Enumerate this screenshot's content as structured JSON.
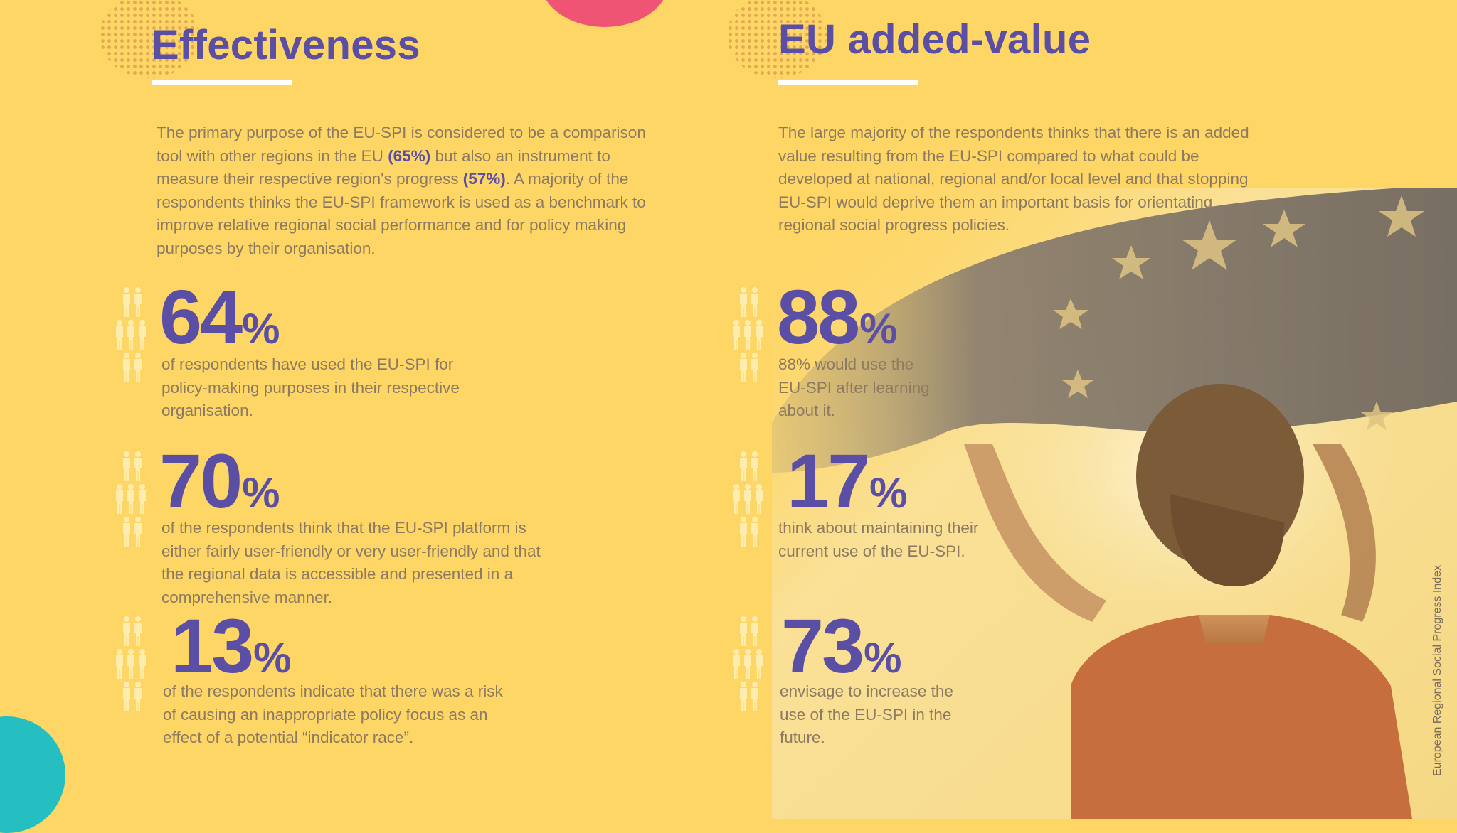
{
  "colors": {
    "background": "#FED665",
    "heading": "#5A4FA5",
    "body_text": "#8C7A62",
    "accent_pink": "#F05474",
    "accent_teal": "#25BFC2"
  },
  "left": {
    "title": "Effectiveness",
    "paragraph": {
      "p1": "The primary purpose of the EU-SPI is considered to be a comparison tool with other regions in the EU ",
      "b1": "(65%)",
      "p2": " but also an instrument to measure their respective region's progress ",
      "b2": "(57%)",
      "p3": ". A majority of the respondents thinks the EU-SPI framework is used as a benchmark to improve relative regional social performance and for policy making purposes by their organisation."
    },
    "stats": [
      {
        "number": "64",
        "unit": "%",
        "description": "of respondents have used the EU-SPI for policy-making purposes in their respective organisation."
      },
      {
        "number": "70",
        "unit": "%",
        "description": "of the respondents think that the EU-SPI platform is either fairly user-friendly or very user-friendly and that the regional data is accessible and presented in a comprehensive manner."
      },
      {
        "number": "13",
        "unit": "%",
        "description": "of the respondents indicate that there was a risk of causing an inappropriate policy focus as an effect of a potential “indicator race”."
      }
    ]
  },
  "right": {
    "title": "EU added-value",
    "paragraph": "The large majority of the respondents thinks that there is an added value resulting from the EU-SPI compared to what could be developed at national, regional and/or local level and that stopping EU-SPI would deprive them an important basis for orientating regional social progress policies.",
    "stats": [
      {
        "number": "88",
        "unit": "%",
        "description": "88% would use the EU-SPI after learning about it."
      },
      {
        "number": "17",
        "unit": "%",
        "description": "think about maintaining their current use of the EU-SPI."
      },
      {
        "number": "73",
        "unit": "%",
        "description": "envisage to increase the use of the EU-SPI in the future."
      }
    ]
  },
  "side_label": "European Regional Social Progress Index",
  "icons": {
    "people": "people-group-icon",
    "flag": "eu-flag-photo"
  }
}
